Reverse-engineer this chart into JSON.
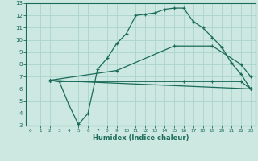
{
  "xlabel": "Humidex (Indice chaleur)",
  "ylabel": "",
  "bg_color": "#cce8e0",
  "grid_color": "#aad4cc",
  "line_color": "#1a6b5a",
  "xlim": [
    -0.5,
    23.5
  ],
  "ylim": [
    3,
    13
  ],
  "xticks": [
    0,
    1,
    2,
    3,
    4,
    5,
    6,
    7,
    8,
    9,
    10,
    11,
    12,
    13,
    14,
    15,
    16,
    17,
    18,
    19,
    20,
    21,
    22,
    23
  ],
  "yticks": [
    3,
    4,
    5,
    6,
    7,
    8,
    9,
    10,
    11,
    12,
    13
  ],
  "series": [
    {
      "x": [
        2,
        3,
        4,
        5,
        6,
        7,
        8,
        9,
        10,
        11,
        12,
        13,
        14,
        15,
        16,
        17,
        18,
        19,
        20,
        21,
        22,
        23
      ],
      "y": [
        6.7,
        6.6,
        4.7,
        3.1,
        4.0,
        7.6,
        8.5,
        9.7,
        10.5,
        12.0,
        12.1,
        12.2,
        12.5,
        12.6,
        12.6,
        11.5,
        11.0,
        10.2,
        9.4,
        8.1,
        7.2,
        6.0
      ]
    },
    {
      "x": [
        2,
        3,
        16,
        19,
        22,
        23
      ],
      "y": [
        6.7,
        6.6,
        6.6,
        6.6,
        6.6,
        6.0
      ]
    },
    {
      "x": [
        2,
        23
      ],
      "y": [
        6.7,
        6.0
      ]
    },
    {
      "x": [
        2,
        9,
        15,
        19,
        22,
        23
      ],
      "y": [
        6.7,
        7.5,
        9.5,
        9.5,
        8.0,
        7.0
      ]
    }
  ]
}
